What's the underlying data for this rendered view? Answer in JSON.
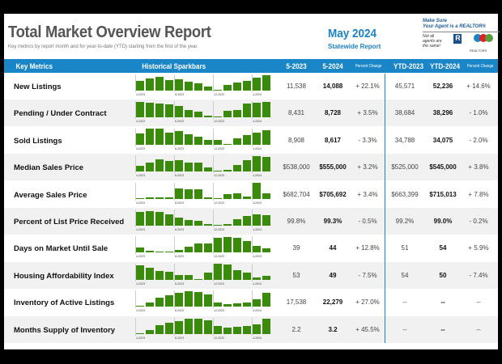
{
  "header": {
    "title": "Total Market Overview Report",
    "subtitle": "Key metrics by report month and for year-to-date (YTD) starting from the first of the year.",
    "month": "May 2024",
    "report": "Statewide Report"
  },
  "promo": {
    "line1": "Make Sure",
    "line2": "Your Agent is a REALTOR®",
    "line3": "Not all agents are the same!",
    "logo_r": "R",
    "realtors": "REALTORS"
  },
  "columns": {
    "metric": "Key Metrics",
    "spark": "Historical Sparkbars",
    "m1": "5-2023",
    "m2": "5-2024",
    "pc": "Percent Change",
    "y1": "YTD-2023",
    "y2": "YTD-2024",
    "pc2": "Percent Change"
  },
  "spark_ticks": [
    "4-2023",
    "8-2023",
    "12-2023",
    "4-2024"
  ],
  "colors": {
    "accent": "#1a86c7",
    "bar": "#3a8a0c"
  },
  "rows": [
    {
      "label": "New Listings",
      "m1": "11,538",
      "m2": "14,088",
      "pc": "+ 22.1%",
      "y1": "45,571",
      "y2": "52,236",
      "pc2": "+ 14.6%",
      "bars": [
        40,
        48,
        55,
        43,
        45,
        36,
        28,
        15,
        3,
        22,
        31,
        40,
        51,
        63
      ]
    },
    {
      "label": "Pending / Under Contract",
      "m1": "8,431",
      "m2": "8,728",
      "pc": "+ 3.5%",
      "y1": "38,684",
      "y2": "38,296",
      "pc2": "- 1.0%",
      "bars": [
        62,
        60,
        57,
        53,
        48,
        30,
        23,
        8,
        2,
        28,
        32,
        55,
        60,
        64
      ]
    },
    {
      "label": "Sold Listings",
      "m1": "8,908",
      "m2": "8,617",
      "pc": "- 3.3%",
      "y1": "34,788",
      "y2": "34,075",
      "pc2": "- 2.0%",
      "bars": [
        45,
        63,
        63,
        49,
        56,
        41,
        33,
        19,
        18,
        2,
        25,
        38,
        47,
        59
      ]
    },
    {
      "label": "Median Sales Price",
      "m1": "$538,000",
      "m2": "$555,000",
      "pc": "+ 3.2%",
      "y1": "$525,000",
      "y2": "$545,000",
      "pc2": "+ 3.8%",
      "bars": [
        24,
        35,
        50,
        43,
        45,
        36,
        38,
        17,
        2,
        6,
        27,
        45,
        63,
        58
      ]
    },
    {
      "label": "Average Sales Price",
      "m1": "$682,704",
      "m2": "$705,692",
      "pc": "+ 3.4%",
      "y1": "$663,399",
      "y2": "$715,013",
      "pc2": "+ 7.8%",
      "bars": [
        2,
        5,
        4,
        4,
        40,
        38,
        38,
        6,
        2,
        17,
        21,
        8,
        63,
        20
      ]
    },
    {
      "label": "Percent of List Price Received",
      "m1": "99.8%",
      "m2": "99.3%",
      "pc": "- 0.5%",
      "y1": "99.2%",
      "y2": "99.0%",
      "pc2": "- 0.2%",
      "bars": [
        54,
        60,
        55,
        45,
        33,
        22,
        20,
        5,
        3,
        7,
        25,
        40,
        44,
        43
      ]
    },
    {
      "label": "Days on Market Until Sale",
      "m1": "39",
      "m2": "44",
      "pc": "+ 12.8%",
      "y1": "51",
      "y2": "54",
      "pc2": "+ 5.9%",
      "bars": [
        22,
        7,
        2,
        2,
        12,
        23,
        38,
        37,
        60,
        64,
        60,
        48,
        28,
        18
      ]
    },
    {
      "label": "Housing Affordability Index",
      "m1": "53",
      "m2": "49",
      "pc": "- 7.5%",
      "y1": "54",
      "y2": "50",
      "pc2": "- 7.4%",
      "bars": [
        58,
        47,
        35,
        33,
        18,
        20,
        3,
        30,
        65,
        60,
        38,
        30,
        10,
        17
      ]
    },
    {
      "label": "Inventory of Active Listings",
      "m1": "17,538",
      "m2": "22,279",
      "pc": "+ 27.0%",
      "y1": "--",
      "y2": "--",
      "pc2": "--",
      "bars": [
        2,
        17,
        38,
        46,
        57,
        62,
        58,
        48,
        17,
        10,
        15,
        17,
        31,
        55
      ]
    },
    {
      "label": "Months Supply of Inventory",
      "m1": "2.2",
      "m2": "3.2",
      "pc": "+ 45.5%",
      "y1": "--",
      "y2": "--",
      "pc2": "--",
      "bars": [
        2,
        15,
        34,
        43,
        52,
        61,
        61,
        53,
        30,
        24,
        27,
        30,
        39,
        61
      ]
    }
  ]
}
